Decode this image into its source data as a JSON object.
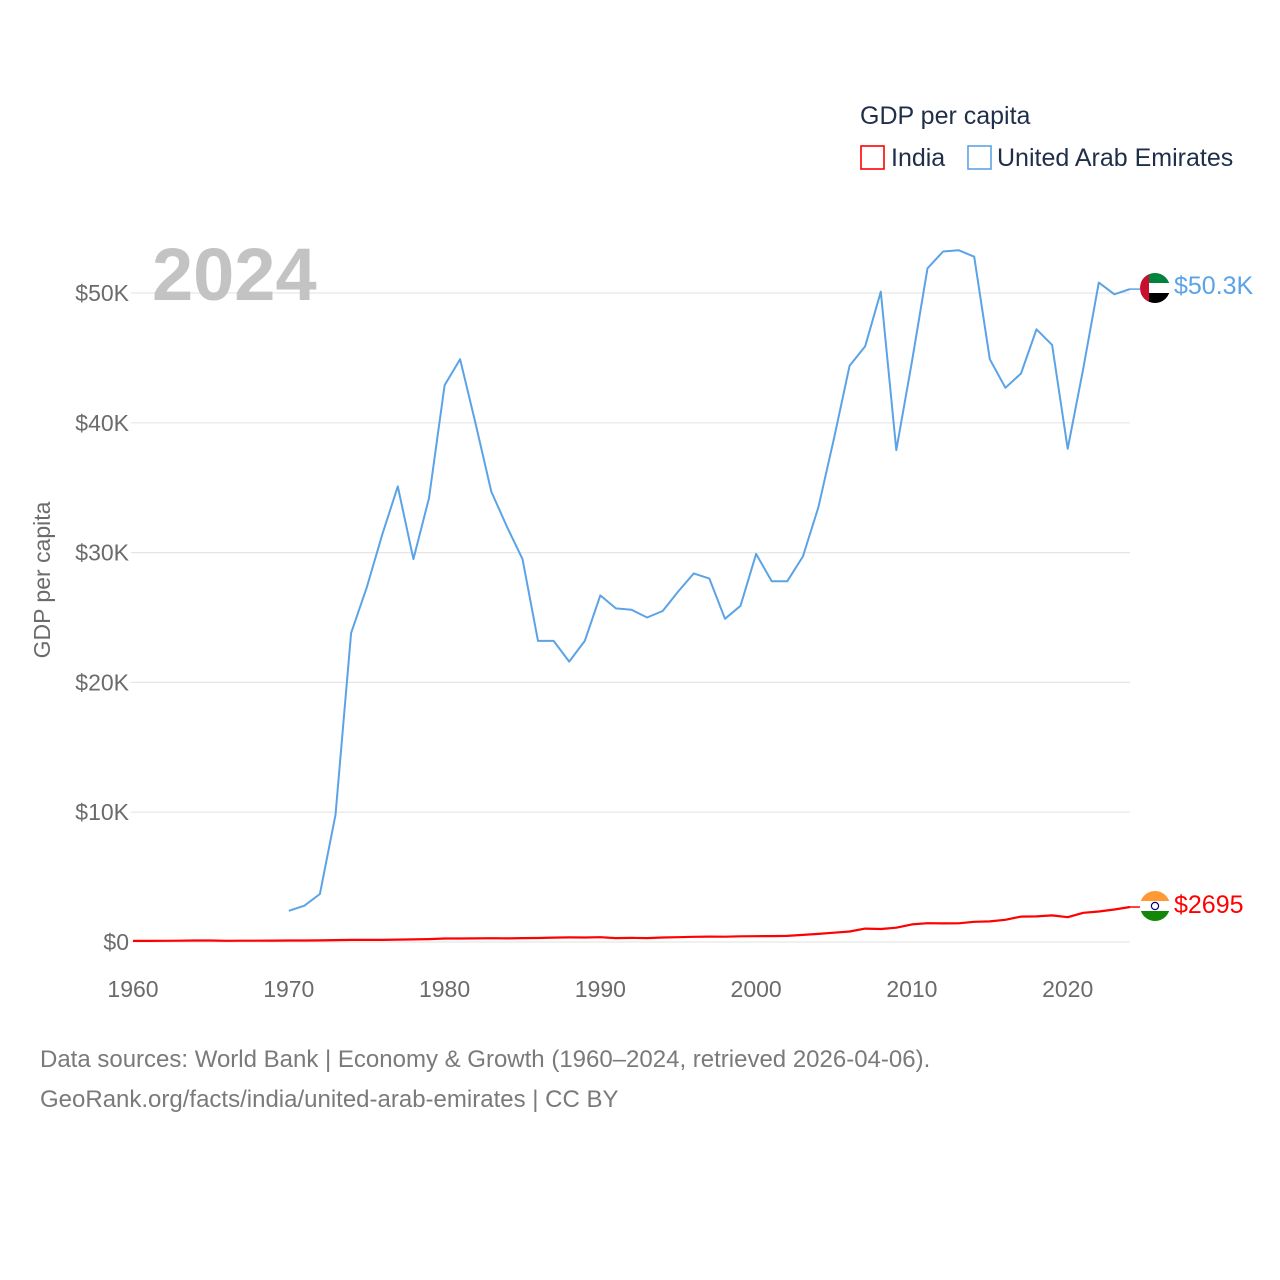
{
  "chart_data": {
    "type": "line",
    "title": "GDP per capita",
    "legend_title": "GDP per capita",
    "legend_position": "top-right",
    "year_label": "2024",
    "xlabel": "",
    "ylabel": "GDP per capita",
    "xlim": [
      1960,
      2024
    ],
    "ylim": [
      0,
      50000
    ],
    "x_ticks": [
      1960,
      1970,
      1980,
      1990,
      2000,
      2010,
      2020
    ],
    "x_tick_labels": [
      "1960",
      "1970",
      "1980",
      "1990",
      "2000",
      "2010",
      "2020"
    ],
    "y_ticks": [
      0,
      10000,
      20000,
      30000,
      40000,
      50000
    ],
    "y_tick_labels": [
      "$0",
      "$10K",
      "$20K",
      "$30K",
      "$40K",
      "$50K"
    ],
    "grid": true,
    "series": [
      {
        "name": "India",
        "color": "#ff0000",
        "flag_icon": "india-flag-icon",
        "end_label": "$2695",
        "x": [
          1960,
          1961,
          1962,
          1963,
          1964,
          1965,
          1966,
          1967,
          1968,
          1969,
          1970,
          1971,
          1972,
          1973,
          1974,
          1975,
          1976,
          1977,
          1978,
          1979,
          1980,
          1981,
          1982,
          1983,
          1984,
          1985,
          1986,
          1987,
          1988,
          1989,
          1990,
          1991,
          1992,
          1993,
          1994,
          1995,
          1996,
          1997,
          1998,
          1999,
          2000,
          2001,
          2002,
          2003,
          2004,
          2005,
          2006,
          2007,
          2008,
          2009,
          2010,
          2011,
          2012,
          2013,
          2014,
          2015,
          2016,
          2017,
          2018,
          2019,
          2020,
          2021,
          2022,
          2023,
          2024
        ],
        "values": [
          83,
          86,
          90,
          100,
          113,
          119,
          90,
          97,
          100,
          109,
          112,
          119,
          124,
          143,
          162,
          158,
          162,
          186,
          203,
          224,
          267,
          271,
          275,
          292,
          278,
          297,
          311,
          341,
          356,
          347,
          368,
          303,
          317,
          301,
          346,
          373,
          399,
          415,
          412,
          441,
          443,
          451,
          471,
          546,
          627,
          714,
          807,
          1029,
          999,
          1102,
          1358,
          1450,
          1434,
          1438,
          1560,
          1590,
          1714,
          1958,
          1974,
          2050,
          1913,
          2250,
          2347,
          2500,
          2695
        ]
      },
      {
        "name": "United Arab Emirates",
        "color": "#5ba3e6",
        "flag_icon": "uae-flag-icon",
        "end_label": "$50.3K",
        "x": [
          1970,
          1971,
          1972,
          1973,
          1974,
          1975,
          1976,
          1977,
          1978,
          1979,
          1980,
          1981,
          1982,
          1983,
          1984,
          1985,
          1986,
          1987,
          1988,
          1989,
          1990,
          1991,
          1992,
          1993,
          1994,
          1995,
          1996,
          1997,
          1998,
          1999,
          2000,
          2001,
          2002,
          2003,
          2004,
          2005,
          2006,
          2007,
          2008,
          2009,
          2010,
          2011,
          2012,
          2013,
          2014,
          2015,
          2016,
          2017,
          2018,
          2019,
          2020,
          2021,
          2022,
          2023,
          2024
        ],
        "values": [
          2400,
          2800,
          3700,
          9800,
          23800,
          27300,
          31400,
          35100,
          29500,
          34200,
          42900,
          44900,
          39900,
          34700,
          32000,
          29500,
          23200,
          23200,
          21600,
          23200,
          26700,
          25700,
          25600,
          25000,
          25500,
          27000,
          28400,
          28000,
          24900,
          25900,
          29900,
          27800,
          27800,
          29700,
          33500,
          38800,
          44400,
          45900,
          50100,
          37900,
          44700,
          51900,
          53200,
          53300,
          52800,
          44900,
          42700,
          43800,
          47200,
          46000,
          38000,
          44200,
          50800,
          49900,
          50300
        ]
      }
    ]
  },
  "footer": {
    "line1": "Data sources: World Bank | Economy & Growth (1960–2024, retrieved 2026-04-06).",
    "line2": "GeoRank.org/facts/india/united-arab-emirates | CC BY"
  }
}
